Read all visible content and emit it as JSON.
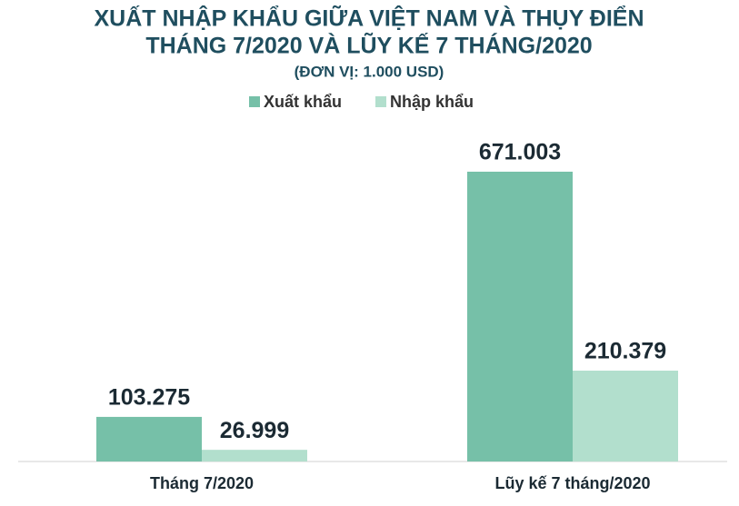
{
  "chart_data": {
    "type": "bar",
    "title": [
      "XUẤT NHẬP KHẨU GIỮA VIỆT NAM VÀ THỤY ĐIỂN",
      "THÁNG 7/2020 VÀ LŨY KẾ 7 THÁNG/2020"
    ],
    "subtitle": "(ĐƠN VỊ: 1.000 USD)",
    "categories": [
      "Tháng 7/2020",
      "Lũy kế 7 tháng/2020"
    ],
    "series": [
      {
        "name": "Xuất khẩu",
        "color": "#76c0a8",
        "values": [
          103275,
          671003
        ],
        "value_labels": [
          "103.275",
          "671.003"
        ]
      },
      {
        "name": "Nhập khẩu",
        "color": "#b2dfcd",
        "values": [
          26999,
          210379
        ],
        "value_labels": [
          "26.999",
          "210.379"
        ]
      }
    ]
  }
}
